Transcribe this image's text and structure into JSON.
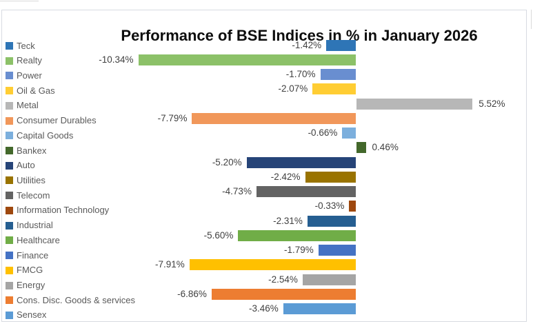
{
  "title": "Performance of BSE Indices in % in January 2026",
  "colors": {
    "frame_border": "#d7dbe1",
    "legend_text": "#595959",
    "value_label_text": "#404040",
    "title_text": "#0d0d0d",
    "background": "#ffffff"
  },
  "chart_data": {
    "type": "bar",
    "orientation": "horizontal",
    "title": "Performance of BSE Indices in % in January 2026",
    "xlabel": "",
    "ylabel": "",
    "xlim": [
      -16.8,
      8.1
    ],
    "grid": false,
    "axis_lines": false,
    "legend_position": "left",
    "value_label_format": "0.00%",
    "categories": [
      "Teck",
      "Realty",
      "Power",
      "Oil & Gas",
      "Metal",
      "Consumer Durables",
      "Capital Goods",
      "Bankex",
      "Auto",
      "Utilities",
      "Telecom",
      "Information Technology",
      "Industrial",
      "Healthcare",
      "Finance",
      "FMCG",
      "Energy",
      "Cons. Disc. Goods & services",
      "Sensex"
    ],
    "values": [
      -1.42,
      -10.34,
      -1.7,
      -2.07,
      5.52,
      -7.79,
      -0.66,
      0.46,
      -5.2,
      -2.42,
      -4.73,
      -0.33,
      -2.31,
      -5.6,
      -1.79,
      -7.91,
      -2.54,
      -6.86,
      -3.46
    ],
    "labels": [
      "-1.42%",
      "-10.34%",
      "-1.70%",
      "-2.07%",
      "5.52%",
      "-7.79%",
      "-0.66%",
      "0.46%",
      "-5.20%",
      "-2.42%",
      "-4.73%",
      "-0.33%",
      "-2.31%",
      "-5.60%",
      "-1.79%",
      "-7.91%",
      "-2.54%",
      "-6.86%",
      "-3.46%"
    ],
    "series_colors": [
      "#2E75B6",
      "#8CC168",
      "#698ED0",
      "#FFCD33",
      "#B7B7B7",
      "#F1975A",
      "#7CAFDD",
      "#43682B",
      "#264478",
      "#997300",
      "#636363",
      "#9E480E",
      "#255E91",
      "#70AD47",
      "#4472C4",
      "#FFC000",
      "#A5A5A5",
      "#ED7D31",
      "#5B9BD5"
    ]
  }
}
